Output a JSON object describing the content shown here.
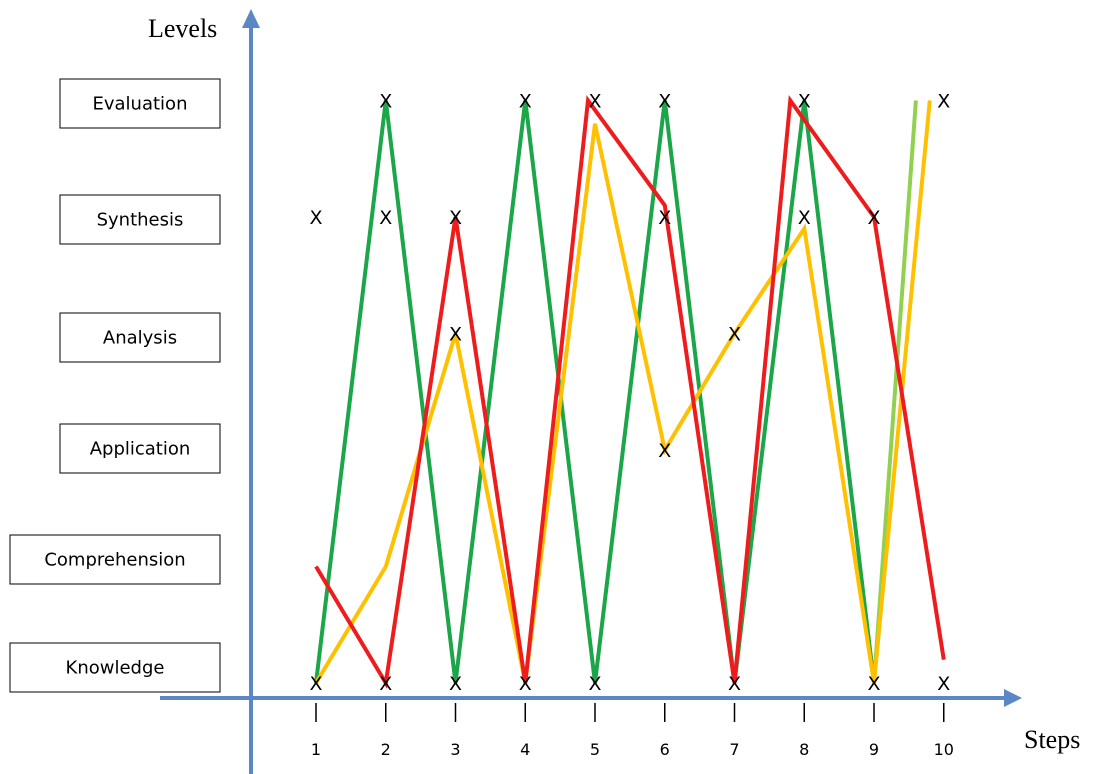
{
  "chart_data": {
    "type": "line",
    "title": "",
    "xlabel": "Steps",
    "ylabel": "Levels",
    "categories": [
      "1",
      "2",
      "3",
      "4",
      "5",
      "6",
      "7",
      "8",
      "9",
      "10"
    ],
    "levels": [
      "Knowledge",
      "Comprehension",
      "Application",
      "Analysis",
      "Synthesis",
      "Evaluation"
    ],
    "colors": {
      "axis": "#5b87c4",
      "green": "#1ca64a",
      "red": "#ee1c1c",
      "yellow": "#ffc000",
      "light_green": "#92d050",
      "marker": "#000000"
    },
    "markers": [
      {
        "x": 1,
        "y": 1
      },
      {
        "x": 1,
        "y": 5
      },
      {
        "x": 2,
        "y": 1
      },
      {
        "x": 2,
        "y": 5
      },
      {
        "x": 2,
        "y": 6
      },
      {
        "x": 3,
        "y": 1
      },
      {
        "x": 3,
        "y": 4
      },
      {
        "x": 3,
        "y": 5
      },
      {
        "x": 4,
        "y": 1
      },
      {
        "x": 4,
        "y": 6
      },
      {
        "x": 5,
        "y": 1
      },
      {
        "x": 5,
        "y": 6
      },
      {
        "x": 6,
        "y": 3
      },
      {
        "x": 6,
        "y": 5
      },
      {
        "x": 6,
        "y": 6
      },
      {
        "x": 7,
        "y": 1
      },
      {
        "x": 7,
        "y": 4
      },
      {
        "x": 8,
        "y": 5
      },
      {
        "x": 8,
        "y": 6
      },
      {
        "x": 9,
        "y": 1
      },
      {
        "x": 9,
        "y": 5
      },
      {
        "x": 10,
        "y": 1
      },
      {
        "x": 10,
        "y": 6
      }
    ],
    "series": [
      {
        "color_key": "green",
        "points": [
          [
            1,
            1
          ],
          [
            2,
            6
          ],
          [
            3,
            1
          ],
          [
            4,
            6
          ],
          [
            5,
            1
          ],
          [
            6,
            6
          ],
          [
            7,
            1
          ],
          [
            8,
            6
          ],
          [
            9,
            1
          ]
        ]
      },
      {
        "color_key": "light_green",
        "points": [
          [
            9,
            1
          ],
          [
            9.6,
            6
          ]
        ]
      },
      {
        "color_key": "yellow",
        "points": [
          [
            1,
            1
          ],
          [
            2,
            2
          ],
          [
            3,
            4
          ],
          [
            4,
            1
          ],
          [
            5,
            5.8
          ],
          [
            6,
            3
          ],
          [
            7,
            4
          ],
          [
            8,
            4.9
          ],
          [
            9,
            1
          ],
          [
            9.8,
            6
          ]
        ]
      },
      {
        "color_key": "red",
        "points": [
          [
            1,
            2
          ],
          [
            2,
            1
          ],
          [
            3,
            5
          ],
          [
            4,
            1
          ],
          [
            4.9,
            6
          ],
          [
            6,
            5.1
          ],
          [
            7,
            1
          ],
          [
            7.8,
            6
          ],
          [
            9,
            5
          ],
          [
            10,
            1.2
          ]
        ]
      }
    ],
    "xlim": [
      0,
      10.5
    ],
    "ylim": [
      0,
      6.5
    ],
    "grid": false,
    "legend": "none"
  }
}
